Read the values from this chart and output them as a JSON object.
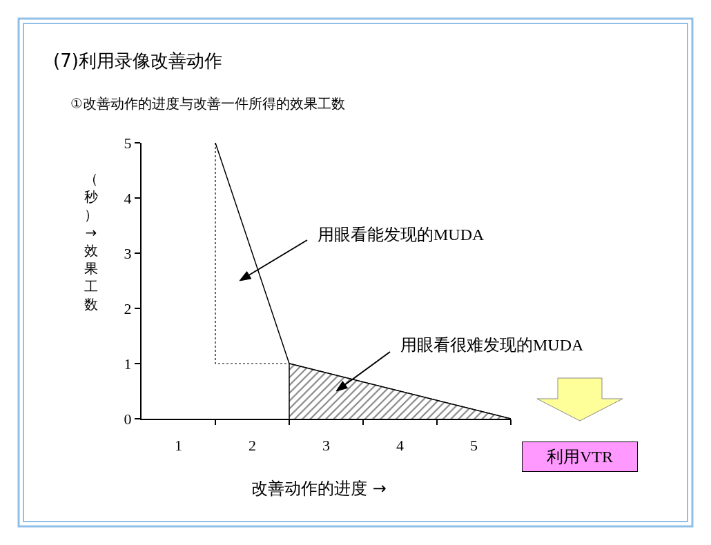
{
  "chart_data": {
    "type": "line",
    "title": "(7)利用录像改善动作",
    "subtitle": "①改善动作的进度与改善一件所得的效果工数",
    "xlabel": "改善动作的进度 →",
    "ylabel": "（秒）→效果工数",
    "xlim": [
      0.5,
      5.5
    ],
    "xticks": [
      1,
      2,
      3,
      4,
      5,
      {
        "value": 1.5,
        "label": null
      },
      {
        "value": 2.5,
        "label": null
      },
      {
        "value": 3.5,
        "label": null
      },
      {
        "value": 4.5,
        "label": null
      },
      {
        "value": 5.5,
        "label": null
      }
    ],
    "ylim": [
      0,
      5
    ],
    "yticks": [
      0,
      1,
      2,
      3,
      4,
      5
    ],
    "marker": "none",
    "series": [
      {
        "x": [
          1.5,
          2.5,
          5.5
        ],
        "values": [
          5,
          1,
          0
        ],
        "color": "#000000",
        "line_style": "solid"
      },
      {
        "type": "line",
        "x": [
          1.5,
          1.5,
          2.5
        ],
        "values": [
          5,
          1,
          1
        ],
        "color": "#000000",
        "line_style": "dotted"
      },
      {
        "type": "area",
        "x": [
          2.5,
          2.5,
          5.5
        ],
        "values": [
          0,
          1,
          0
        ],
        "color": "#000000",
        "line_style": "solid"
      }
    ],
    "annotations": [
      "用眼看能发现的MUDA",
      "用眼看很难发现的MUDA",
      "利用VTR"
    ]
  }
}
